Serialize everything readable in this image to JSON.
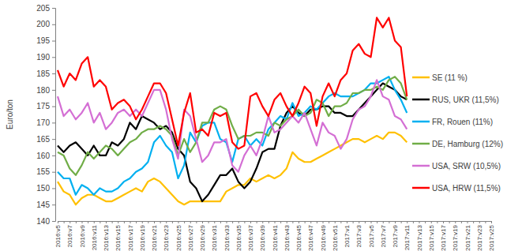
{
  "chart_data": {
    "type": "line",
    "y_label": "Euro/ton",
    "categories": [
      "2016:v5",
      null,
      "2016:v7",
      null,
      "2016:v9",
      null,
      "2016:v11",
      null,
      "2016:v13",
      null,
      "2016:v15",
      null,
      "2016:v17",
      null,
      "2016:v19",
      null,
      "2016:v21",
      null,
      "2016:v23",
      null,
      "2016:v25",
      null,
      "2016:v27",
      null,
      "2016:v29",
      null,
      "2016:v31",
      null,
      "2016:v33",
      null,
      "2016:v35",
      null,
      "2016:v37",
      null,
      "2016:v39",
      null,
      "2016:v41",
      null,
      "2016:v43",
      null,
      "2016:v45",
      null,
      "2016:v47",
      null,
      "2016:v49",
      null,
      "2016:v51",
      null,
      "2017:v1",
      null,
      "2017:v3",
      null,
      "2017:v5",
      null,
      "2017:v7",
      null,
      "2017:v9",
      null,
      "2017:v11",
      null,
      "2017:v13",
      null,
      "2017:v15",
      null,
      "2017:v17",
      null,
      "2017:v19",
      null,
      "2017:v21",
      null,
      "2017:v23",
      null,
      "2017:v25"
    ],
    "series": [
      {
        "name": "SE (11 %)",
        "color": "#ffc000",
        "values": [
          152,
          149,
          148,
          145,
          147,
          148,
          148,
          147,
          146,
          146,
          147,
          148,
          149,
          150,
          149,
          152,
          153,
          152,
          150,
          148,
          146,
          145,
          146,
          146,
          146,
          146,
          146,
          146,
          149,
          150,
          151,
          151,
          153,
          152,
          153,
          154,
          153,
          154,
          156,
          161,
          159,
          158,
          158,
          159,
          160,
          161,
          162,
          163,
          164,
          165,
          165,
          164,
          165,
          166,
          165,
          167,
          167,
          166,
          164,
          null,
          null,
          null,
          null,
          null,
          null,
          null,
          null,
          null,
          null,
          null,
          null,
          null,
          null
        ]
      },
      {
        "name": "RUS, UKR (11,5%)",
        "color": "#000000",
        "values": [
          163,
          161,
          163,
          164,
          162,
          160,
          163,
          160,
          160,
          164,
          163,
          165,
          170,
          168,
          172,
          171,
          170,
          168,
          169,
          167,
          162,
          160,
          152,
          150,
          146,
          148,
          151,
          154,
          154,
          156,
          152,
          150,
          152,
          156,
          161,
          162,
          162,
          169,
          173,
          175,
          173,
          172,
          174,
          174,
          175,
          175,
          173,
          173,
          172,
          172,
          174,
          176,
          178,
          180,
          182,
          181,
          180,
          178,
          177,
          null,
          null,
          null,
          null,
          null,
          null,
          null,
          null,
          null,
          null,
          null,
          null,
          null,
          null
        ]
      },
      {
        "name": "FR, Rouen (11%)",
        "color": "#00b0f0",
        "values": [
          155,
          153,
          153,
          148,
          151,
          150,
          148,
          150,
          149,
          149,
          150,
          152,
          153,
          155,
          156,
          158,
          164,
          166,
          163,
          161,
          153,
          157,
          167,
          164,
          169,
          170,
          170,
          165,
          164,
          158,
          165,
          166,
          163,
          165,
          163,
          168,
          170,
          172,
          171,
          176,
          172,
          173,
          175,
          174,
          176,
          178,
          179,
          178,
          178,
          178,
          179,
          180,
          182,
          182,
          183,
          184,
          180,
          177,
          173,
          null,
          null,
          null,
          null,
          null,
          null,
          null,
          null,
          null,
          null,
          null,
          null,
          null,
          null
        ]
      },
      {
        "name": "DE, Hamburg (12%)",
        "color": "#70ad47",
        "values": [
          161,
          160,
          156,
          154,
          157,
          161,
          159,
          161,
          163,
          162,
          160,
          162,
          164,
          165,
          167,
          168,
          168,
          169,
          168,
          166,
          160,
          165,
          161,
          164,
          170,
          170,
          174,
          175,
          174,
          169,
          165,
          166,
          166,
          167,
          167,
          166,
          170,
          169,
          171,
          172,
          174,
          172,
          173,
          177,
          176,
          172,
          175,
          175,
          176,
          179,
          179,
          180,
          180,
          181,
          180,
          183,
          184,
          182,
          177,
          null,
          null,
          null,
          null,
          null,
          null,
          null,
          null,
          null,
          null,
          null,
          null,
          null,
          null
        ]
      },
      {
        "name": "USA, SRW (10,5%)",
        "color": "#d46fd4",
        "values": [
          178,
          172,
          174,
          171,
          173,
          176,
          170,
          173,
          168,
          170,
          173,
          174,
          172,
          174,
          172,
          176,
          180,
          180,
          174,
          165,
          159,
          174,
          172,
          165,
          158,
          160,
          164,
          164,
          165,
          157,
          155,
          160,
          163,
          160,
          165,
          172,
          167,
          168,
          170,
          172,
          170,
          173,
          168,
          163,
          170,
          167,
          166,
          162,
          165,
          171,
          174,
          175,
          178,
          183,
          178,
          177,
          172,
          171,
          168,
          null,
          null,
          null,
          null,
          null,
          null,
          null,
          null,
          null,
          null,
          null,
          null,
          null,
          null
        ]
      },
      {
        "name": "USA, HRW (11,5%)",
        "color": "#ff0000",
        "values": [
          186,
          181,
          185,
          183,
          188,
          190,
          181,
          183,
          181,
          174,
          176,
          177,
          175,
          171,
          174,
          178,
          182,
          182,
          179,
          171,
          163,
          173,
          179,
          167,
          168,
          166,
          173,
          172,
          173,
          164,
          162,
          163,
          178,
          179,
          175,
          172,
          177,
          179,
          175,
          172,
          176,
          181,
          179,
          169,
          178,
          182,
          178,
          183,
          185,
          192,
          194,
          191,
          190,
          202,
          199,
          202,
          195,
          193,
          178,
          null,
          null,
          null,
          null,
          null,
          null,
          null,
          null,
          null,
          null,
          null,
          null,
          null,
          null
        ]
      }
    ],
    "ylim": [
      140,
      205
    ],
    "yticks": [
      140,
      145,
      150,
      155,
      160,
      165,
      170,
      175,
      180,
      185,
      190,
      195,
      200,
      205
    ],
    "grid": false,
    "legend": "right"
  }
}
